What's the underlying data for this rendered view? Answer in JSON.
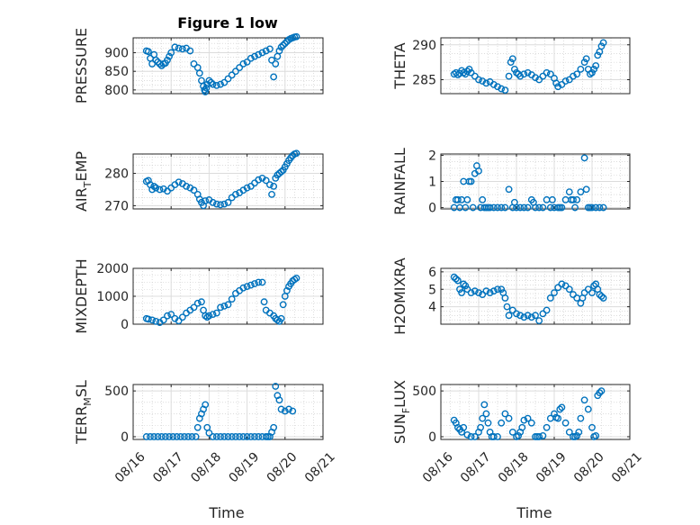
{
  "figure_title": "Figure 1 low",
  "xlabel": "Time",
  "x_ticks": [
    "08/16",
    "08/17",
    "08/18",
    "08/19",
    "08/20",
    "08/21"
  ],
  "marker_color": "#0072BD",
  "chart_data": [
    {
      "type": "scatter",
      "id": "pressure",
      "ylabel": "PRESSURE",
      "ylim": [
        790,
        940
      ],
      "yticks": [
        800,
        850,
        900
      ],
      "ytick_labels": [
        "800",
        "850",
        "900"
      ],
      "x": [
        0.35,
        0.4,
        0.45,
        0.5,
        0.55,
        0.6,
        0.65,
        0.7,
        0.75,
        0.8,
        0.85,
        0.9,
        0.95,
        1.0,
        1.1,
        1.2,
        1.3,
        1.4,
        1.5,
        1.6,
        1.7,
        1.75,
        1.8,
        1.85,
        1.88,
        1.9,
        1.93,
        1.95,
        2.0,
        2.05,
        2.1,
        2.2,
        2.3,
        2.4,
        2.5,
        2.6,
        2.7,
        2.8,
        2.9,
        3.0,
        3.1,
        3.2,
        3.3,
        3.4,
        3.5,
        3.6,
        3.65,
        3.7,
        3.75,
        3.8,
        3.85,
        3.9,
        3.95,
        4.0,
        4.05,
        4.1,
        4.15,
        4.2,
        4.25,
        4.3
      ],
      "y": [
        905,
        903,
        885,
        870,
        895,
        880,
        875,
        870,
        865,
        870,
        872,
        880,
        890,
        900,
        915,
        912,
        910,
        912,
        905,
        870,
        860,
        845,
        825,
        810,
        800,
        795,
        805,
        815,
        825,
        820,
        815,
        812,
        815,
        820,
        830,
        840,
        850,
        860,
        870,
        875,
        885,
        890,
        895,
        900,
        905,
        910,
        880,
        835,
        870,
        890,
        905,
        915,
        920,
        925,
        930,
        935,
        938,
        940,
        942,
        943
      ]
    },
    {
      "type": "scatter",
      "id": "theta",
      "ylabel": "THETA",
      "ylim": [
        283,
        291
      ],
      "yticks": [
        285,
        290
      ],
      "ytick_labels": [
        "285",
        "290"
      ],
      "x": [
        0.35,
        0.4,
        0.45,
        0.5,
        0.55,
        0.6,
        0.65,
        0.7,
        0.75,
        0.8,
        0.9,
        1.0,
        1.1,
        1.2,
        1.3,
        1.4,
        1.5,
        1.6,
        1.7,
        1.8,
        1.85,
        1.9,
        1.95,
        2.0,
        2.05,
        2.1,
        2.2,
        2.3,
        2.4,
        2.5,
        2.6,
        2.7,
        2.8,
        2.9,
        3.0,
        3.05,
        3.1,
        3.2,
        3.3,
        3.4,
        3.5,
        3.6,
        3.7,
        3.8,
        3.85,
        3.9,
        3.95,
        4.0,
        4.05,
        4.1,
        4.15,
        4.2,
        4.25,
        4.3
      ],
      "y": [
        285.8,
        286.0,
        285.7,
        285.9,
        286.3,
        286.0,
        285.8,
        286.2,
        286.5,
        286.0,
        285.5,
        285.0,
        284.8,
        284.5,
        284.7,
        284.3,
        284.0,
        283.7,
        283.5,
        285.5,
        287.5,
        288.0,
        286.5,
        286.0,
        285.8,
        285.5,
        285.8,
        286.0,
        285.7,
        285.3,
        285.0,
        285.5,
        286.0,
        285.8,
        285.2,
        284.5,
        284.0,
        284.3,
        284.8,
        285.0,
        285.5,
        285.8,
        286.5,
        287.5,
        288.0,
        286.5,
        285.8,
        286.0,
        286.5,
        287.0,
        288.5,
        289.0,
        289.8,
        290.3
      ]
    },
    {
      "type": "scatter",
      "id": "airtemp",
      "ylabel_main": "AIR",
      "ylabel_sub": "T",
      "ylabel_rest": "EMP",
      "ylim": [
        269,
        286
      ],
      "yticks": [
        270,
        280
      ],
      "ytick_labels": [
        "270",
        "280"
      ],
      "x": [
        0.35,
        0.4,
        0.45,
        0.5,
        0.55,
        0.6,
        0.7,
        0.8,
        0.9,
        1.0,
        1.1,
        1.2,
        1.3,
        1.4,
        1.5,
        1.6,
        1.7,
        1.75,
        1.8,
        1.85,
        1.9,
        2.0,
        2.1,
        2.2,
        2.3,
        2.4,
        2.5,
        2.6,
        2.7,
        2.8,
        2.9,
        3.0,
        3.1,
        3.2,
        3.3,
        3.4,
        3.5,
        3.6,
        3.65,
        3.7,
        3.75,
        3.8,
        3.85,
        3.9,
        3.95,
        4.0,
        4.05,
        4.1,
        4.15,
        4.2,
        4.25,
        4.3
      ],
      "y": [
        277.5,
        277.8,
        276.5,
        275.0,
        276.0,
        275.5,
        275.0,
        275.2,
        274.5,
        275.5,
        276.5,
        277.3,
        276.8,
        276.0,
        275.5,
        274.8,
        273.5,
        272.0,
        271.0,
        270.0,
        271.5,
        271.8,
        271.0,
        270.5,
        270.3,
        270.5,
        271.0,
        272.5,
        273.5,
        274.0,
        274.8,
        275.5,
        276.0,
        277.0,
        278.0,
        278.5,
        277.8,
        276.5,
        273.5,
        276.0,
        278.5,
        279.5,
        280.0,
        280.5,
        281.0,
        282.0,
        283.0,
        284.0,
        284.8,
        285.5,
        286.0,
        286.2
      ]
    },
    {
      "type": "scatter",
      "id": "rainfall",
      "ylabel": "RAINFALL",
      "ylim": [
        -0.05,
        2.05
      ],
      "yticks": [
        0,
        1,
        2
      ],
      "ytick_labels": [
        "0",
        "1",
        "2"
      ],
      "x": [
        0.35,
        0.4,
        0.45,
        0.5,
        0.55,
        0.6,
        0.65,
        0.7,
        0.75,
        0.8,
        0.85,
        0.9,
        0.95,
        1.0,
        1.05,
        1.1,
        1.15,
        1.2,
        1.25,
        1.3,
        1.4,
        1.5,
        1.6,
        1.7,
        1.8,
        1.9,
        2.0,
        2.1,
        2.2,
        2.3,
        2.4,
        2.5,
        2.6,
        2.7,
        2.8,
        2.9,
        3.0,
        3.1,
        3.2,
        3.3,
        3.4,
        3.45,
        3.5,
        3.55,
        3.6,
        3.7,
        3.8,
        3.85,
        3.9,
        3.95,
        4.0,
        4.1,
        4.2,
        4.3,
        1.95,
        2.45,
        2.95,
        3.15
      ],
      "y": [
        0,
        0.3,
        0.3,
        0,
        0.3,
        1.0,
        0,
        0.3,
        1.0,
        1.0,
        0,
        1.3,
        1.6,
        1.4,
        0,
        0.3,
        0,
        0,
        0,
        0,
        0,
        0,
        0,
        0,
        0.7,
        0,
        0,
        0,
        0,
        0,
        0.3,
        0,
        0,
        0,
        0.3,
        0,
        0,
        0,
        0,
        0.3,
        0.6,
        0.3,
        0.3,
        0,
        0.3,
        0.6,
        1.9,
        0.7,
        0,
        0,
        0,
        0,
        0,
        0,
        0.2,
        0.2,
        0.3,
        0
      ]
    },
    {
      "type": "scatter",
      "id": "mixdepth",
      "ylabel": "MIXDEPTH",
      "ylim": [
        0,
        2000
      ],
      "yticks": [
        0,
        1000,
        2000
      ],
      "ytick_labels": [
        "0",
        "1000",
        "2000"
      ],
      "x": [
        0.35,
        0.4,
        0.5,
        0.6,
        0.7,
        0.8,
        0.9,
        1.0,
        1.1,
        1.2,
        1.3,
        1.4,
        1.5,
        1.6,
        1.7,
        1.8,
        1.85,
        1.9,
        1.95,
        2.0,
        2.1,
        2.2,
        2.3,
        2.4,
        2.5,
        2.6,
        2.7,
        2.8,
        2.9,
        3.0,
        3.1,
        3.2,
        3.3,
        3.4,
        3.45,
        3.5,
        3.6,
        3.7,
        3.75,
        3.8,
        3.85,
        3.9,
        3.95,
        4.0,
        4.05,
        4.1,
        4.15,
        4.2,
        4.25,
        4.3
      ],
      "y": [
        200,
        180,
        150,
        100,
        60,
        150,
        300,
        350,
        200,
        120,
        250,
        400,
        500,
        600,
        750,
        800,
        500,
        300,
        250,
        300,
        350,
        400,
        600,
        650,
        700,
        900,
        1100,
        1200,
        1300,
        1350,
        1400,
        1450,
        1500,
        1500,
        800,
        500,
        400,
        300,
        200,
        150,
        100,
        200,
        700,
        1000,
        1200,
        1350,
        1450,
        1550,
        1600,
        1650
      ]
    },
    {
      "type": "scatter",
      "id": "h2omixra",
      "ylabel": "H2OMIXRA",
      "ylim": [
        3,
        6.2
      ],
      "yticks": [
        4,
        5,
        6
      ],
      "ytick_labels": [
        "4",
        "5",
        "6"
      ],
      "x": [
        0.35,
        0.4,
        0.45,
        0.5,
        0.55,
        0.6,
        0.65,
        0.7,
        0.8,
        0.9,
        1.0,
        1.1,
        1.2,
        1.3,
        1.4,
        1.5,
        1.6,
        1.65,
        1.7,
        1.75,
        1.8,
        1.9,
        2.0,
        2.1,
        2.2,
        2.3,
        2.4,
        2.5,
        2.6,
        2.7,
        2.8,
        2.9,
        3.0,
        3.1,
        3.2,
        3.3,
        3.4,
        3.5,
        3.6,
        3.7,
        3.75,
        3.8,
        3.9,
        4.0,
        4.05,
        4.1,
        4.15,
        4.2,
        4.25,
        4.3
      ],
      "y": [
        5.7,
        5.6,
        5.5,
        5.0,
        4.8,
        5.3,
        5.2,
        5.0,
        4.8,
        4.9,
        4.8,
        4.7,
        4.9,
        4.8,
        4.9,
        5.0,
        5.0,
        4.8,
        4.5,
        4.0,
        3.5,
        3.8,
        3.6,
        3.5,
        3.4,
        3.5,
        3.4,
        3.5,
        3.2,
        3.6,
        3.8,
        4.5,
        4.8,
        5.1,
        5.3,
        5.2,
        5.0,
        4.7,
        4.5,
        4.2,
        4.5,
        4.8,
        5.0,
        4.8,
        5.2,
        5.3,
        5.0,
        4.7,
        4.6,
        4.5
      ]
    },
    {
      "type": "scatter",
      "id": "terrmsl",
      "ylabel_main": "TERR",
      "ylabel_sub": "M",
      "ylabel_rest": "SL",
      "ylim": [
        -30,
        570
      ],
      "yticks": [
        0,
        500
      ],
      "ytick_labels": [
        "0",
        "500"
      ],
      "x": [
        0.35,
        0.45,
        0.55,
        0.65,
        0.75,
        0.85,
        0.95,
        1.05,
        1.15,
        1.25,
        1.35,
        1.45,
        1.55,
        1.65,
        1.7,
        1.75,
        1.8,
        1.85,
        1.9,
        1.95,
        2.0,
        2.1,
        2.2,
        2.3,
        2.4,
        2.5,
        2.6,
        2.7,
        2.8,
        2.9,
        3.0,
        3.1,
        3.2,
        3.3,
        3.4,
        3.5,
        3.55,
        3.6,
        3.65,
        3.7,
        3.75,
        3.8,
        3.85,
        3.9,
        4.0,
        4.1,
        4.2
      ],
      "y": [
        0,
        0,
        0,
        0,
        0,
        0,
        0,
        0,
        0,
        0,
        0,
        0,
        0,
        0,
        100,
        200,
        250,
        300,
        350,
        100,
        40,
        0,
        0,
        0,
        0,
        0,
        0,
        0,
        0,
        0,
        0,
        0,
        0,
        0,
        0,
        0,
        0,
        0,
        50,
        100,
        550,
        450,
        400,
        300,
        280,
        300,
        280
      ]
    },
    {
      "type": "scatter",
      "id": "sunflux",
      "ylabel_main": "SUN",
      "ylabel_sub": "F",
      "ylabel_rest": "LUX",
      "ylim": [
        -30,
        570
      ],
      "yticks": [
        0,
        500
      ],
      "ytick_labels": [
        "0",
        "500"
      ],
      "x": [
        0.35,
        0.4,
        0.45,
        0.5,
        0.55,
        0.6,
        0.7,
        0.8,
        0.9,
        1.0,
        1.05,
        1.1,
        1.15,
        1.2,
        1.25,
        1.3,
        1.35,
        1.4,
        1.5,
        1.6,
        1.7,
        1.8,
        1.9,
        2.0,
        2.05,
        2.1,
        2.15,
        2.2,
        2.3,
        2.4,
        2.5,
        2.55,
        2.6,
        2.7,
        2.8,
        2.9,
        3.0,
        3.05,
        3.1,
        3.15,
        3.2,
        3.3,
        3.4,
        3.5,
        3.55,
        3.6,
        3.65,
        3.7,
        3.8,
        3.9,
        4.0,
        4.05,
        4.1,
        4.15,
        4.2,
        4.25
      ],
      "y": [
        180,
        150,
        100,
        80,
        50,
        100,
        20,
        0,
        0,
        50,
        100,
        200,
        350,
        250,
        150,
        50,
        0,
        0,
        0,
        150,
        250,
        200,
        50,
        0,
        10,
        50,
        100,
        180,
        200,
        150,
        0,
        0,
        0,
        10,
        100,
        200,
        250,
        210,
        200,
        300,
        320,
        150,
        50,
        0,
        0,
        10,
        50,
        200,
        400,
        300,
        100,
        0,
        10,
        450,
        480,
        500
      ]
    }
  ]
}
